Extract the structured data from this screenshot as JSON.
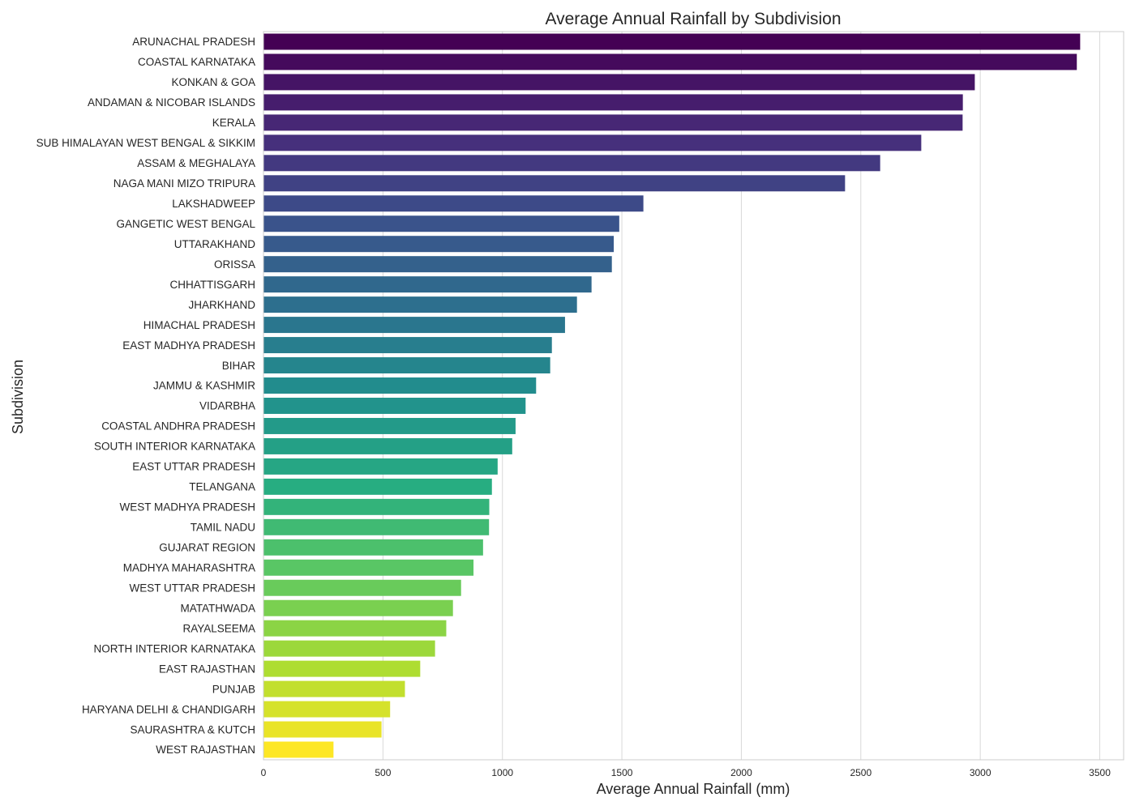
{
  "chart_data": {
    "type": "bar",
    "orientation": "horizontal",
    "title": "Average Annual Rainfall by Subdivision",
    "xlabel": "Average Annual Rainfall (mm)",
    "ylabel": "Subdivision",
    "xlim": [
      0,
      3600
    ],
    "xticks": [
      0,
      500,
      1000,
      1500,
      2000,
      2500,
      3000,
      3500
    ],
    "grid": true,
    "colormap": "viridis",
    "categories": [
      "ARUNACHAL PRADESH",
      "COASTAL KARNATAKA",
      "KONKAN & GOA",
      "ANDAMAN & NICOBAR ISLANDS",
      "KERALA",
      "SUB HIMALAYAN WEST BENGAL & SIKKIM",
      "ASSAM & MEGHALAYA",
      "NAGA MANI MIZO TRIPURA",
      "LAKSHADWEEP",
      "GANGETIC WEST BENGAL",
      "UTTARAKHAND",
      "ORISSA",
      "CHHATTISGARH",
      "JHARKHAND",
      "HIMACHAL PRADESH",
      "EAST MADHYA PRADESH",
      "BIHAR",
      "JAMMU & KASHMIR",
      "VIDARBHA",
      "COASTAL ANDHRA PRADESH",
      "SOUTH INTERIOR KARNATAKA",
      "EAST UTTAR PRADESH",
      "TELANGANA",
      "WEST MADHYA PRADESH",
      "TAMIL NADU",
      "GUJARAT REGION",
      "MADHYA MAHARASHTRA",
      "WEST UTTAR PRADESH",
      "MATATHWADA",
      "RAYALSEEMA",
      "NORTH INTERIOR KARNATAKA",
      "EAST RAJASTHAN",
      "PUNJAB",
      "HARYANA DELHI & CHANDIGARH",
      "SAURASHTRA & KUTCH",
      "WEST RAJASTHAN"
    ],
    "values": [
      3418,
      3404,
      2977,
      2927,
      2926,
      2753,
      2581,
      2434,
      1590,
      1489,
      1466,
      1458,
      1373,
      1312,
      1262,
      1207,
      1200,
      1141,
      1097,
      1055,
      1041,
      980,
      956,
      945,
      944,
      919,
      879,
      827,
      793,
      765,
      718,
      656,
      592,
      530,
      494,
      293
    ]
  }
}
